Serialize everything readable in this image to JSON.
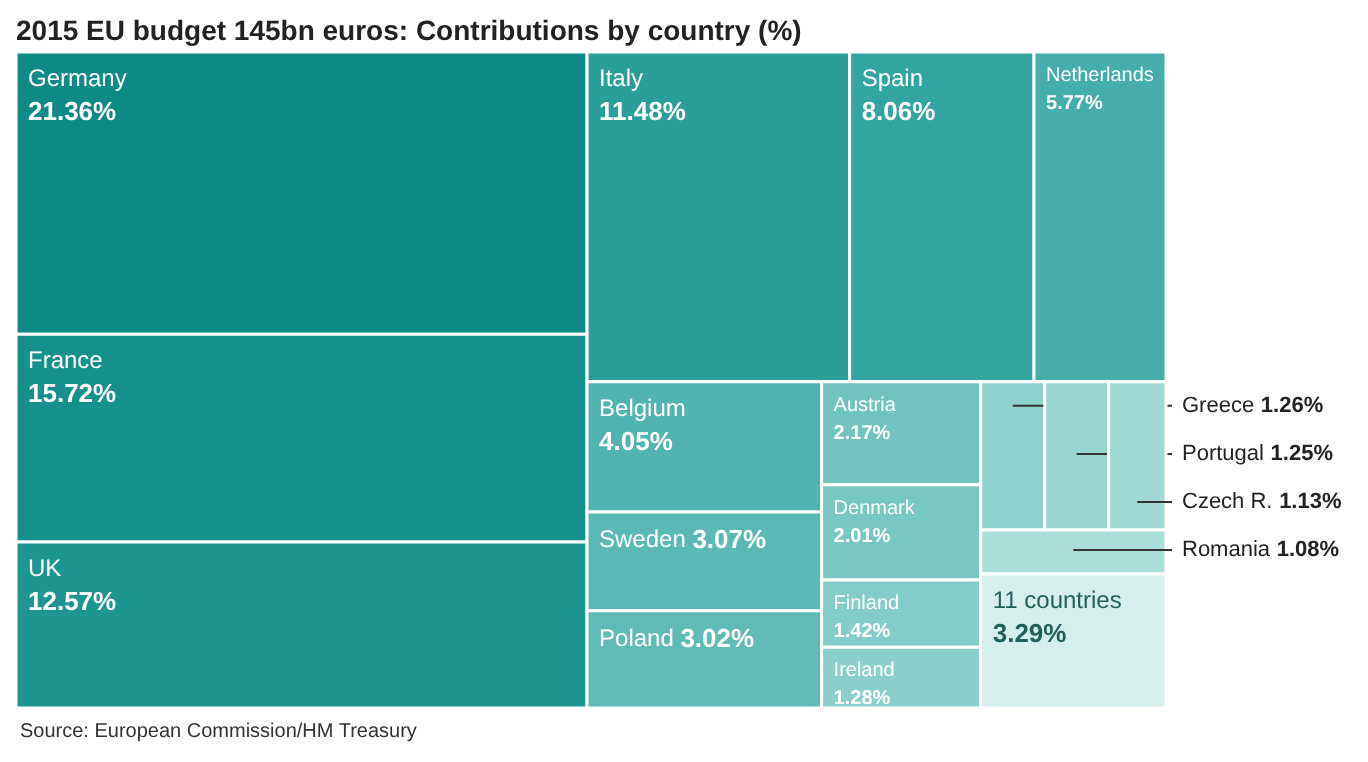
{
  "chart_data": {
    "type": "other",
    "title": "2015 EU budget 145bn euros: Contributions by country (%)",
    "categories": [
      "Germany",
      "France",
      "UK",
      "Italy",
      "Spain",
      "Netherlands",
      "Belgium",
      "Sweden",
      "Poland",
      "Austria",
      "Denmark",
      "Finland",
      "Ireland",
      "Greece",
      "Portugal",
      "Czech R.",
      "Romania",
      "11 countries"
    ],
    "values": [
      21.36,
      15.72,
      12.57,
      11.48,
      8.06,
      5.77,
      4.05,
      3.07,
      3.02,
      2.17,
      2.01,
      1.42,
      1.28,
      1.26,
      1.25,
      1.13,
      1.08,
      3.29
    ],
    "value_labels": [
      "21.36%",
      "15.72%",
      "12.57%",
      "11.48%",
      "8.06%",
      "5.77%",
      "4.05%",
      "3.07%",
      "3.02%",
      "2.17%",
      "2.01%",
      "1.42%",
      "1.28%",
      "1.26%",
      "1.25%",
      "1.13%",
      "1.08%",
      "3.29%"
    ],
    "colors": [
      "#0e8a86",
      "#15908c",
      "#1d9590",
      "#2a9f9a",
      "#33a5a0",
      "#45aeaa",
      "#52b4b0",
      "#5ab9b5",
      "#60bbb7",
      "#70c3bf",
      "#78c7c3",
      "#84ccc9",
      "#8bcfcc",
      "#8fd1ce",
      "#98d5d2",
      "#a2d9d7",
      "#abdedb",
      "#d6efed"
    ],
    "annotations": [
      "Source: European Commission/HM Treasury"
    ]
  }
}
